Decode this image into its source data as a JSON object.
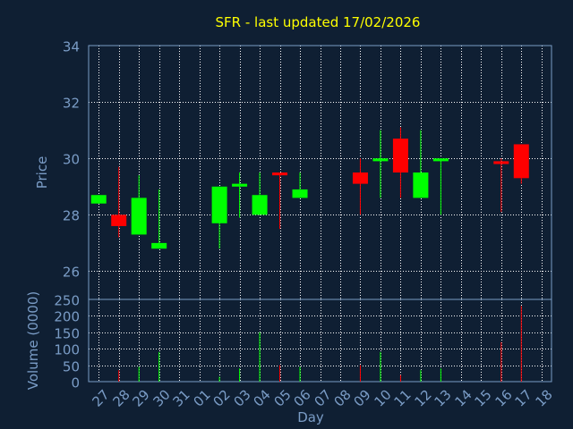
{
  "chart_data": {
    "type": "candlestick",
    "title": "SFR - last updated 17/02/2026",
    "xlabel": "Day",
    "price_panel": {
      "ylabel": "Price",
      "ylim": [
        25,
        34
      ],
      "yticks": [
        "26",
        "28",
        "30",
        "32",
        "34"
      ],
      "grid": true
    },
    "volume_panel": {
      "ylabel": "Volume (0000)",
      "ylim": [
        0,
        250
      ],
      "yticks": [
        "0",
        "50",
        "100",
        "150",
        "200",
        "250"
      ],
      "grid": true
    },
    "x_tick_labels": [
      "27",
      "28",
      "29",
      "30",
      "31",
      "01",
      "02",
      "03",
      "04",
      "05",
      "06",
      "07",
      "08",
      "09",
      "10",
      "11",
      "12",
      "13",
      "14",
      "15",
      "16",
      "17",
      "18"
    ],
    "colors": {
      "up": "#00ff00",
      "down": "#ff0000",
      "title": "#ffff00",
      "axis_text": "#7a9cc6",
      "background": "#0f1f33"
    },
    "candles": [
      {
        "day": "27",
        "open": 28.4,
        "high": 28.7,
        "low": 28.4,
        "close": 28.7,
        "volume": 0
      },
      {
        "day": "28",
        "open": 28.0,
        "high": 29.7,
        "low": 27.2,
        "close": 27.6,
        "volume": 35
      },
      {
        "day": "29",
        "open": 27.3,
        "high": 29.4,
        "low": 27.3,
        "close": 28.6,
        "volume": 45
      },
      {
        "day": "30",
        "open": 26.8,
        "high": 28.9,
        "low": 26.8,
        "close": 27.0,
        "volume": 90
      },
      {
        "day": "02",
        "open": 27.7,
        "high": 29.0,
        "low": 26.8,
        "close": 29.0,
        "volume": 15
      },
      {
        "day": "03",
        "open": 29.0,
        "high": 29.5,
        "low": 27.9,
        "close": 29.1,
        "volume": 40
      },
      {
        "day": "04",
        "open": 28.0,
        "high": 29.5,
        "low": 28.0,
        "close": 28.7,
        "volume": 150
      },
      {
        "day": "05",
        "open": 29.5,
        "high": 29.5,
        "low": 27.5,
        "close": 29.4,
        "volume": 50
      },
      {
        "day": "06",
        "open": 28.6,
        "high": 29.5,
        "low": 28.6,
        "close": 28.9,
        "volume": 45
      },
      {
        "day": "09",
        "open": 29.5,
        "high": 30.0,
        "low": 28.0,
        "close": 29.1,
        "volume": 50
      },
      {
        "day": "10",
        "open": 29.9,
        "high": 31.0,
        "low": 28.6,
        "close": 30.0,
        "volume": 90
      },
      {
        "day": "11",
        "open": 30.7,
        "high": 31.1,
        "low": 28.6,
        "close": 29.5,
        "volume": 20
      },
      {
        "day": "12",
        "open": 28.6,
        "high": 31.0,
        "low": 28.6,
        "close": 29.5,
        "volume": 35
      },
      {
        "day": "13",
        "open": 29.9,
        "high": 30.0,
        "low": 28.0,
        "close": 30.0,
        "volume": 40
      },
      {
        "day": "16",
        "open": 29.9,
        "high": 30.0,
        "low": 28.1,
        "close": 29.8,
        "volume": 120
      },
      {
        "day": "17",
        "open": 30.5,
        "high": 30.5,
        "low": 29.1,
        "close": 29.3,
        "volume": 230
      }
    ]
  }
}
